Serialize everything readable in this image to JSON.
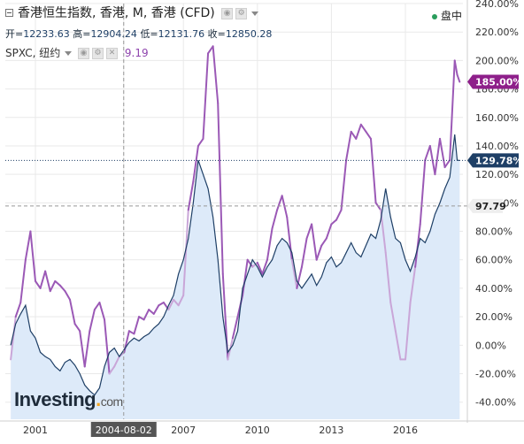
{
  "header": {
    "title": "香港恒生指数, 香港, M, 香港 (CFD)",
    "ohlc_label_open": "开=",
    "open": "12233.63",
    "ohlc_label_high": "高=",
    "high": "12904.24",
    "ohlc_label_low": "低=",
    "low": "12131.76",
    "ohlc_label_close": "收=",
    "close": "12850.28",
    "compare_symbol": "SPXC, 纽约",
    "compare_value": "9.19",
    "market_status": "盘中"
  },
  "branding": {
    "logo_main": "Investing",
    "logo_dot": ".",
    "logo_com": "com"
  },
  "colors": {
    "main_line": "#1e3f66",
    "main_fill": "#ddeaf9",
    "compare_above": "#9b59b6",
    "compare_below": "#c9a6d8",
    "axis_text": "#333333",
    "grid": "#e9e9e9",
    "main_badge": "#1e3f66",
    "compare_badge": "#8e1f8a",
    "ref_badge": "#eeeeee",
    "crosshair": "#999999"
  },
  "chart_data": {
    "type": "line",
    "title": "香港恒生指数, 香港, M, 香港 (CFD)",
    "ylabel": "",
    "xlabel": "",
    "y_axis_format": "percent",
    "ylim": [
      -45,
      240
    ],
    "y_ticks": [
      -40,
      -20,
      0,
      20,
      40,
      60,
      80,
      100,
      120,
      140,
      160,
      180,
      200,
      220,
      240
    ],
    "x_ticks": [
      {
        "label": "2001",
        "t": 2001.0
      },
      {
        "label": "2004-08-02",
        "t": 2004.58
      },
      {
        "label": "2007",
        "t": 2007.0
      },
      {
        "label": "2010",
        "t": 2010.0
      },
      {
        "label": "2013",
        "t": 2013.0
      },
      {
        "label": "2016",
        "t": 2016.0
      }
    ],
    "xlim": [
      2000.0,
      2018.5
    ],
    "reference": {
      "name": "crosshair",
      "t": 2004.58,
      "value": 97.79,
      "label": "97.79"
    },
    "grid": true,
    "legend": "none",
    "series": [
      {
        "name": "香港恒生指数",
        "role": "main",
        "last_label": "129.78%",
        "last_value": 129.78,
        "points": [
          [
            2000.0,
            0
          ],
          [
            2000.2,
            15
          ],
          [
            2000.4,
            22
          ],
          [
            2000.6,
            28
          ],
          [
            2000.8,
            10
          ],
          [
            2001.0,
            5
          ],
          [
            2001.2,
            -5
          ],
          [
            2001.4,
            -8
          ],
          [
            2001.6,
            -10
          ],
          [
            2001.8,
            -15
          ],
          [
            2002.0,
            -18
          ],
          [
            2002.2,
            -12
          ],
          [
            2002.4,
            -10
          ],
          [
            2002.6,
            -14
          ],
          [
            2002.8,
            -20
          ],
          [
            2003.0,
            -28
          ],
          [
            2003.2,
            -32
          ],
          [
            2003.4,
            -35
          ],
          [
            2003.6,
            -30
          ],
          [
            2003.8,
            -15
          ],
          [
            2004.0,
            -5
          ],
          [
            2004.2,
            -2
          ],
          [
            2004.4,
            -8
          ],
          [
            2004.6,
            -3
          ],
          [
            2004.8,
            2
          ],
          [
            2005.0,
            5
          ],
          [
            2005.2,
            3
          ],
          [
            2005.4,
            6
          ],
          [
            2005.6,
            8
          ],
          [
            2005.8,
            12
          ],
          [
            2006.0,
            15
          ],
          [
            2006.2,
            20
          ],
          [
            2006.4,
            28
          ],
          [
            2006.6,
            35
          ],
          [
            2006.8,
            50
          ],
          [
            2007.0,
            60
          ],
          [
            2007.2,
            75
          ],
          [
            2007.4,
            100
          ],
          [
            2007.6,
            130
          ],
          [
            2007.8,
            120
          ],
          [
            2008.0,
            110
          ],
          [
            2008.2,
            90
          ],
          [
            2008.4,
            60
          ],
          [
            2008.6,
            20
          ],
          [
            2008.8,
            -5
          ],
          [
            2009.0,
            0
          ],
          [
            2009.2,
            10
          ],
          [
            2009.4,
            40
          ],
          [
            2009.6,
            50
          ],
          [
            2009.8,
            60
          ],
          [
            2010.0,
            55
          ],
          [
            2010.2,
            48
          ],
          [
            2010.4,
            55
          ],
          [
            2010.6,
            60
          ],
          [
            2010.8,
            70
          ],
          [
            2011.0,
            75
          ],
          [
            2011.2,
            72
          ],
          [
            2011.4,
            65
          ],
          [
            2011.6,
            45
          ],
          [
            2011.8,
            40
          ],
          [
            2012.0,
            45
          ],
          [
            2012.2,
            50
          ],
          [
            2012.4,
            42
          ],
          [
            2012.6,
            48
          ],
          [
            2012.8,
            58
          ],
          [
            2013.0,
            62
          ],
          [
            2013.2,
            55
          ],
          [
            2013.4,
            58
          ],
          [
            2013.6,
            65
          ],
          [
            2013.8,
            72
          ],
          [
            2014.0,
            65
          ],
          [
            2014.2,
            62
          ],
          [
            2014.4,
            70
          ],
          [
            2014.6,
            78
          ],
          [
            2014.8,
            75
          ],
          [
            2015.0,
            88
          ],
          [
            2015.2,
            110
          ],
          [
            2015.4,
            90
          ],
          [
            2015.6,
            75
          ],
          [
            2015.8,
            72
          ],
          [
            2016.0,
            60
          ],
          [
            2016.2,
            52
          ],
          [
            2016.4,
            62
          ],
          [
            2016.6,
            75
          ],
          [
            2016.8,
            72
          ],
          [
            2017.0,
            80
          ],
          [
            2017.2,
            92
          ],
          [
            2017.4,
            100
          ],
          [
            2017.6,
            110
          ],
          [
            2017.8,
            118
          ],
          [
            2018.0,
            148
          ],
          [
            2018.1,
            130
          ],
          [
            2018.2,
            129.78
          ]
        ]
      },
      {
        "name": "SPXC, 纽约",
        "role": "compare",
        "last_label": "185.00%",
        "last_value": 185,
        "points": [
          [
            2000.0,
            -10
          ],
          [
            2000.2,
            20
          ],
          [
            2000.4,
            30
          ],
          [
            2000.6,
            60
          ],
          [
            2000.8,
            80
          ],
          [
            2001.0,
            45
          ],
          [
            2001.2,
            40
          ],
          [
            2001.4,
            52
          ],
          [
            2001.6,
            38
          ],
          [
            2001.8,
            45
          ],
          [
            2002.0,
            42
          ],
          [
            2002.2,
            38
          ],
          [
            2002.4,
            32
          ],
          [
            2002.6,
            15
          ],
          [
            2002.8,
            10
          ],
          [
            2003.0,
            -15
          ],
          [
            2003.2,
            10
          ],
          [
            2003.4,
            25
          ],
          [
            2003.6,
            30
          ],
          [
            2003.8,
            18
          ],
          [
            2004.0,
            -20
          ],
          [
            2004.2,
            -15
          ],
          [
            2004.4,
            -8
          ],
          [
            2004.6,
            -5
          ],
          [
            2004.8,
            10
          ],
          [
            2005.0,
            8
          ],
          [
            2005.2,
            20
          ],
          [
            2005.4,
            18
          ],
          [
            2005.6,
            25
          ],
          [
            2005.8,
            22
          ],
          [
            2006.0,
            28
          ],
          [
            2006.2,
            30
          ],
          [
            2006.4,
            25
          ],
          [
            2006.6,
            32
          ],
          [
            2006.8,
            28
          ],
          [
            2007.0,
            35
          ],
          [
            2007.2,
            95
          ],
          [
            2007.4,
            115
          ],
          [
            2007.6,
            140
          ],
          [
            2007.8,
            145
          ],
          [
            2008.0,
            205
          ],
          [
            2008.2,
            210
          ],
          [
            2008.4,
            170
          ],
          [
            2008.6,
            50
          ],
          [
            2008.8,
            -10
          ],
          [
            2009.0,
            5
          ],
          [
            2009.2,
            20
          ],
          [
            2009.4,
            35
          ],
          [
            2009.6,
            60
          ],
          [
            2009.8,
            55
          ],
          [
            2010.0,
            58
          ],
          [
            2010.2,
            50
          ],
          [
            2010.4,
            60
          ],
          [
            2010.6,
            82
          ],
          [
            2010.8,
            95
          ],
          [
            2011.0,
            105
          ],
          [
            2011.2,
            90
          ],
          [
            2011.4,
            60
          ],
          [
            2011.6,
            40
          ],
          [
            2011.8,
            55
          ],
          [
            2012.0,
            75
          ],
          [
            2012.2,
            85
          ],
          [
            2012.4,
            60
          ],
          [
            2012.6,
            70
          ],
          [
            2012.8,
            75
          ],
          [
            2013.0,
            85
          ],
          [
            2013.2,
            88
          ],
          [
            2013.4,
            95
          ],
          [
            2013.6,
            130
          ],
          [
            2013.8,
            150
          ],
          [
            2014.0,
            145
          ],
          [
            2014.2,
            155
          ],
          [
            2014.4,
            150
          ],
          [
            2014.6,
            145
          ],
          [
            2014.8,
            100
          ],
          [
            2015.0,
            95
          ],
          [
            2015.2,
            65
          ],
          [
            2015.4,
            30
          ],
          [
            2015.6,
            10
          ],
          [
            2015.8,
            -10
          ],
          [
            2016.0,
            -10
          ],
          [
            2016.2,
            30
          ],
          [
            2016.4,
            55
          ],
          [
            2016.6,
            85
          ],
          [
            2016.8,
            130
          ],
          [
            2017.0,
            140
          ],
          [
            2017.2,
            120
          ],
          [
            2017.4,
            145
          ],
          [
            2017.6,
            125
          ],
          [
            2017.8,
            130
          ],
          [
            2018.0,
            200
          ],
          [
            2018.1,
            190
          ],
          [
            2018.2,
            185
          ]
        ]
      }
    ]
  }
}
